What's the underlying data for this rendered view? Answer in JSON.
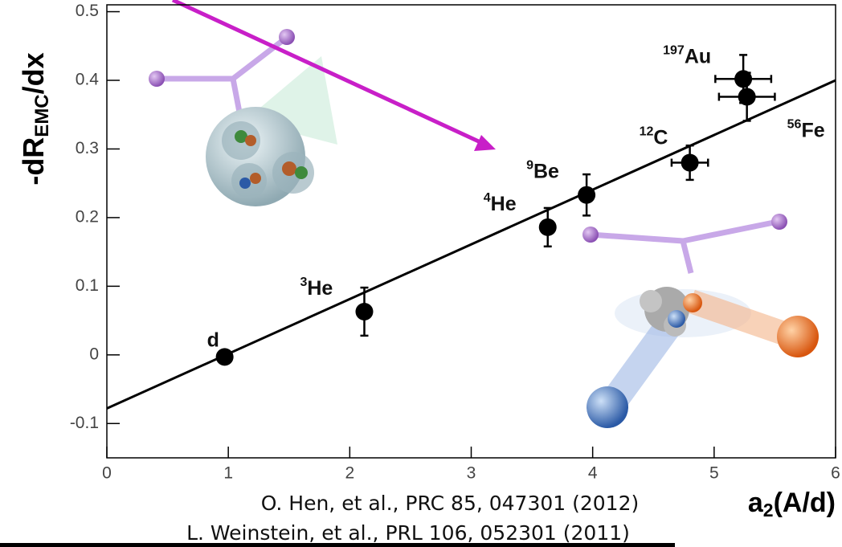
{
  "chart_data": {
    "type": "scatter",
    "ylabel": {
      "main": "-dR",
      "sub": "EMC",
      "rest": "/dx"
    },
    "xlabel": {
      "main": "a",
      "sub": "2",
      "rest": "(A/d)"
    },
    "references": [
      "O. Hen, et al., PRC 85, 047301 (2012)",
      "L. Weinstein, et al., PRL 106, 052301 (2011)"
    ],
    "xlim": [
      0,
      6
    ],
    "ylim": [
      -0.15,
      0.51
    ],
    "xticks": [
      0,
      1,
      2,
      3,
      4,
      5,
      6
    ],
    "yticks": [
      -0.1,
      0,
      0.1,
      0.2,
      0.3,
      0.4,
      0.5
    ],
    "point_labels": [
      {
        "mass": "",
        "symbol": "d"
      },
      {
        "mass": "3",
        "symbol": "He"
      },
      {
        "mass": "4",
        "symbol": "He"
      },
      {
        "mass": "9",
        "symbol": "Be"
      },
      {
        "mass": "12",
        "symbol": "C"
      },
      {
        "mass": "197",
        "symbol": "Au"
      },
      {
        "mass": "56",
        "symbol": "Fe"
      }
    ],
    "x": [
      0.97,
      2.12,
      3.63,
      3.95,
      4.8,
      5.24,
      5.27
    ],
    "values": [
      -0.003,
      0.063,
      0.186,
      0.233,
      0.28,
      0.402,
      0.376
    ],
    "yerr": [
      0.005,
      0.035,
      0.028,
      0.03,
      0.025,
      0.035,
      0.035
    ],
    "xerr": [
      null,
      null,
      null,
      null,
      0.15,
      0.23,
      0.23
    ],
    "color": "#000000",
    "fit": {
      "x": [
        0,
        6
      ],
      "values": [
        -0.078,
        0.4
      ]
    }
  }
}
